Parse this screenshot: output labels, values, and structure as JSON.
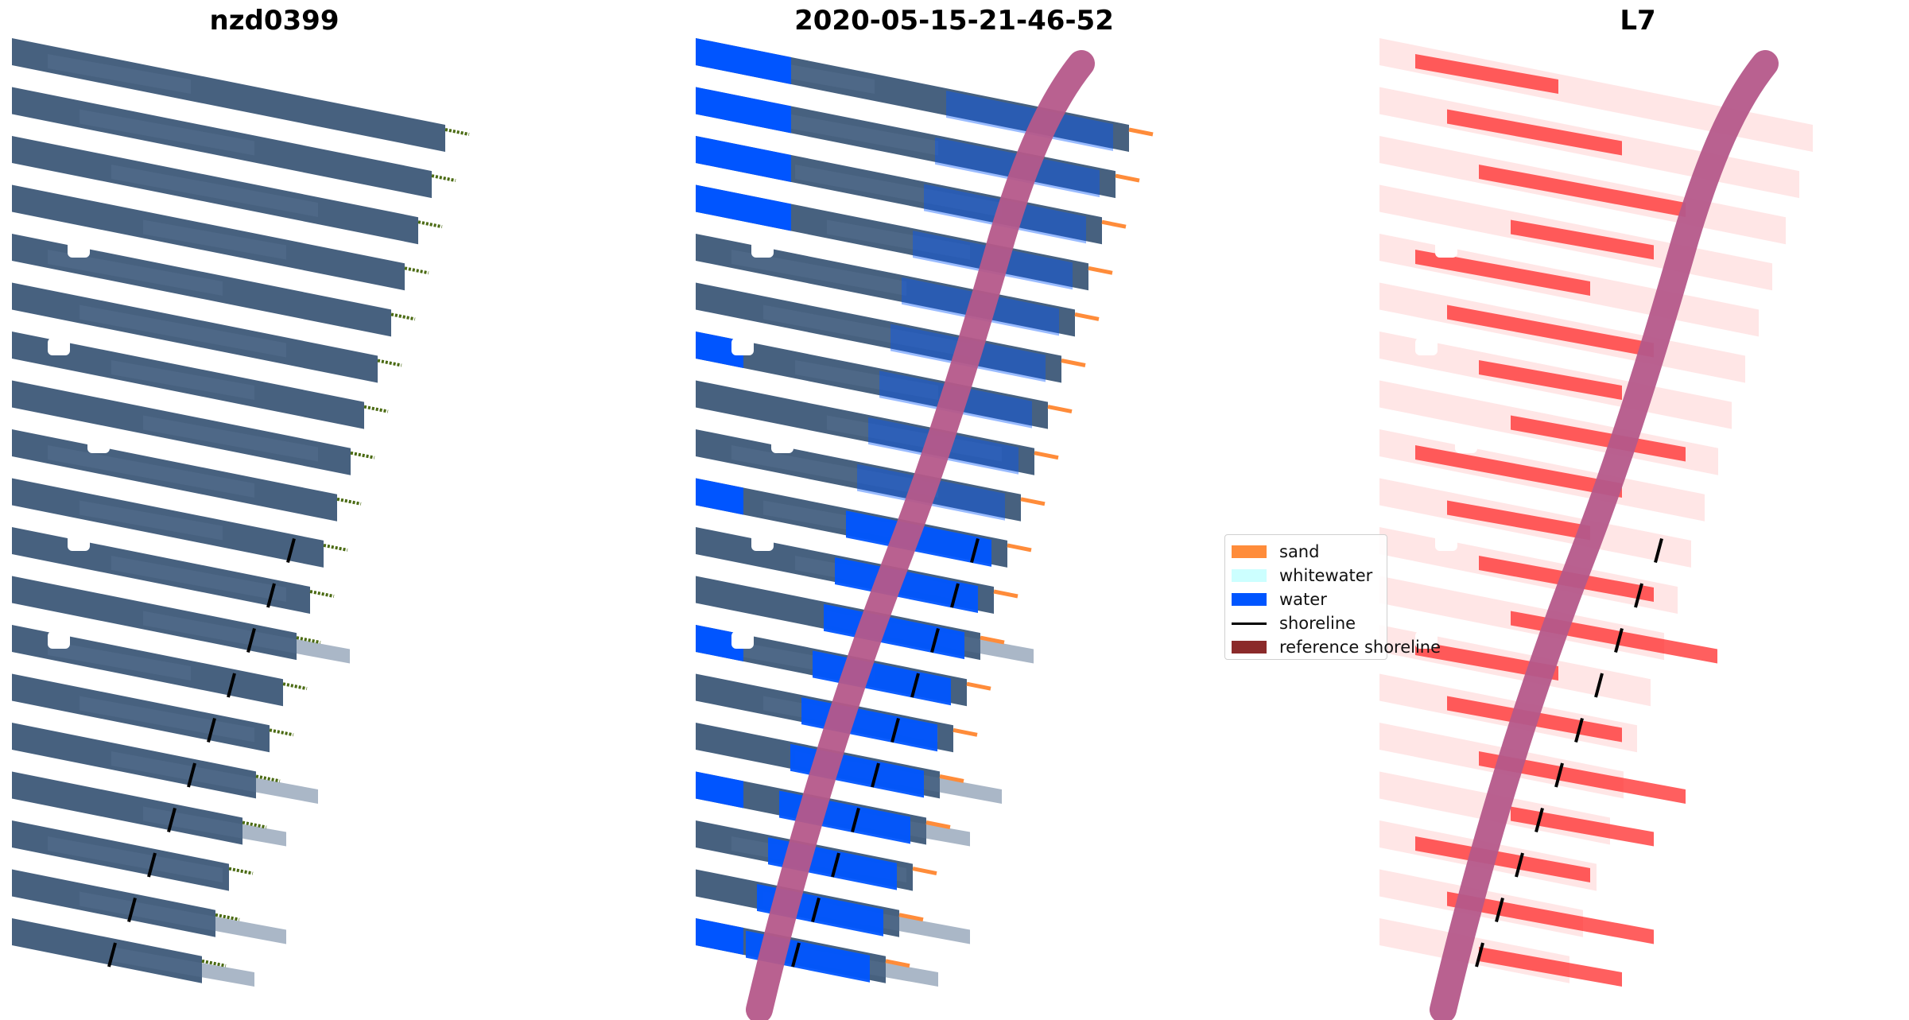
{
  "panels": [
    {
      "title": "nzd0399"
    },
    {
      "title": "2020-05-15-21-46-52"
    },
    {
      "title": "L7"
    }
  ],
  "legend": {
    "items": [
      {
        "label": "sand",
        "color": "#ff8c3a",
        "kind": "patch"
      },
      {
        "label": "whitewater",
        "color": "#ccffff",
        "kind": "patch"
      },
      {
        "label": "water",
        "color": "#0055ff",
        "kind": "patch"
      },
      {
        "label": "shoreline",
        "color": "#000000",
        "kind": "line"
      },
      {
        "label": "reference shoreline",
        "color": "#8b2a2a",
        "kind": "patch"
      }
    ]
  },
  "colors": {
    "imagery": "#3d5878",
    "imagery_alt": "#56708f",
    "water": "#0055ff",
    "sand": "#ff8c3a",
    "reference_buffer": "#b5588a",
    "shoreline": "#000000",
    "classified_red": "#ff2a2a",
    "vegetation": "#4a6a12"
  }
}
